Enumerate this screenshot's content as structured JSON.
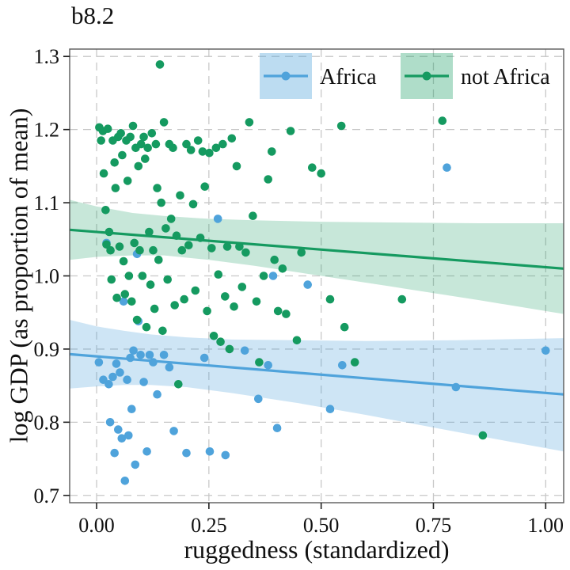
{
  "chart_data": {
    "type": "scatter",
    "title": "b8.2",
    "xlabel": "ruggedness (standardized)",
    "ylabel": "log GDP (as proportion of mean)",
    "xlim": [
      -0.06,
      1.04
    ],
    "ylim": [
      0.69,
      1.31
    ],
    "xticks": [
      0,
      0.25,
      0.5,
      0.75,
      1.0
    ],
    "xtick_labels": [
      "0.00",
      "0.25",
      "0.50",
      "0.75",
      "1.00"
    ],
    "yticks": [
      0.7,
      0.8,
      0.9,
      1.0,
      1.1,
      1.2,
      1.3
    ],
    "ytick_labels": [
      "0.7",
      "0.8",
      "0.9",
      "1.0",
      "1.1",
      "1.2",
      "1.3"
    ],
    "grid": {
      "visible": true,
      "style": "dashed",
      "color": "#c8c8c8"
    },
    "legend": {
      "position": "top-inside"
    },
    "series": [
      {
        "name": "Africa",
        "color": "#4fa3db",
        "band_color": "rgba(79,163,219,0.28)",
        "legend_patch_color": "rgba(79,163,219,0.38)",
        "regression_line": {
          "x": [
            -0.06,
            1.04
          ],
          "y": [
            0.893,
            0.838
          ]
        },
        "band": {
          "x": [
            -0.06,
            0.0,
            0.06,
            0.12,
            0.2,
            0.3,
            0.45,
            0.6,
            0.8,
            1.04
          ],
          "upper": [
            0.94,
            0.931,
            0.925,
            0.92,
            0.916,
            0.913,
            0.912,
            0.911,
            0.912,
            0.915
          ],
          "lower": [
            0.846,
            0.849,
            0.851,
            0.851,
            0.848,
            0.84,
            0.826,
            0.81,
            0.787,
            0.76
          ]
        },
        "points": [
          [
            0.005,
            0.882
          ],
          [
            0.015,
            0.858
          ],
          [
            0.022,
            1.045
          ],
          [
            0.027,
            0.852
          ],
          [
            0.03,
            0.8
          ],
          [
            0.036,
            0.862
          ],
          [
            0.04,
            0.758
          ],
          [
            0.044,
            0.88
          ],
          [
            0.048,
            0.79
          ],
          [
            0.052,
            0.868
          ],
          [
            0.056,
            0.778
          ],
          [
            0.06,
            0.965
          ],
          [
            0.063,
            0.72
          ],
          [
            0.068,
            0.858
          ],
          [
            0.071,
            0.782
          ],
          [
            0.075,
            0.888
          ],
          [
            0.078,
            0.818
          ],
          [
            0.082,
            0.898
          ],
          [
            0.086,
            0.742
          ],
          [
            0.09,
            1.03
          ],
          [
            0.093,
            0.938
          ],
          [
            0.098,
            0.892
          ],
          [
            0.105,
            0.855
          ],
          [
            0.112,
            0.76
          ],
          [
            0.118,
            0.892
          ],
          [
            0.126,
            0.882
          ],
          [
            0.135,
            0.838
          ],
          [
            0.15,
            0.892
          ],
          [
            0.162,
            0.875
          ],
          [
            0.172,
            0.788
          ],
          [
            0.2,
            0.758
          ],
          [
            0.24,
            0.888
          ],
          [
            0.252,
            0.76
          ],
          [
            0.27,
            1.078
          ],
          [
            0.287,
            0.755
          ],
          [
            0.33,
            0.898
          ],
          [
            0.36,
            0.832
          ],
          [
            0.382,
            0.878
          ],
          [
            0.393,
            1.0
          ],
          [
            0.402,
            0.792
          ],
          [
            0.47,
            0.988
          ],
          [
            0.52,
            0.818
          ],
          [
            0.547,
            0.878
          ],
          [
            0.78,
            1.148
          ],
          [
            0.8,
            0.848
          ],
          [
            1.0,
            0.898
          ]
        ]
      },
      {
        "name": "not Africa",
        "color": "#159a60",
        "band_color": "rgba(21,154,96,0.24)",
        "legend_patch_color": "rgba(21,154,96,0.34)",
        "regression_line": {
          "x": [
            -0.06,
            1.04
          ],
          "y": [
            1.063,
            1.01
          ]
        },
        "band": {
          "x": [
            -0.06,
            0.0,
            0.08,
            0.15,
            0.25,
            0.35,
            0.5,
            0.65,
            0.85,
            1.04
          ],
          "upper": [
            1.104,
            1.095,
            1.086,
            1.082,
            1.078,
            1.076,
            1.074,
            1.073,
            1.072,
            1.072
          ],
          "lower": [
            1.022,
            1.026,
            1.028,
            1.028,
            1.022,
            1.014,
            1.0,
            0.986,
            0.967,
            0.948
          ]
        },
        "points": [
          [
            0.006,
            1.203
          ],
          [
            0.01,
            1.185
          ],
          [
            0.014,
            1.198
          ],
          [
            0.016,
            1.14
          ],
          [
            0.02,
            1.09
          ],
          [
            0.022,
            1.043
          ],
          [
            0.025,
            1.201
          ],
          [
            0.028,
            1.06
          ],
          [
            0.031,
            1.035
          ],
          [
            0.033,
            0.995
          ],
          [
            0.036,
            1.185
          ],
          [
            0.04,
            1.155
          ],
          [
            0.042,
            1.12
          ],
          [
            0.045,
            0.97
          ],
          [
            0.048,
            1.19
          ],
          [
            0.051,
            1.04
          ],
          [
            0.054,
            1.195
          ],
          [
            0.057,
            1.165
          ],
          [
            0.06,
            1.02
          ],
          [
            0.063,
            0.975
          ],
          [
            0.066,
            1.185
          ],
          [
            0.069,
            1.13
          ],
          [
            0.072,
            1.0
          ],
          [
            0.075,
            1.19
          ],
          [
            0.078,
            0.965
          ],
          [
            0.081,
            1.205
          ],
          [
            0.084,
            1.045
          ],
          [
            0.087,
            1.175
          ],
          [
            0.09,
            0.94
          ],
          [
            0.093,
            1.15
          ],
          [
            0.096,
            1.035
          ],
          [
            0.099,
            1.18
          ],
          [
            0.102,
            1.0
          ],
          [
            0.105,
            1.19
          ],
          [
            0.108,
            1.16
          ],
          [
            0.111,
            0.93
          ],
          [
            0.114,
            1.175
          ],
          [
            0.117,
            1.06
          ],
          [
            0.12,
            0.988
          ],
          [
            0.123,
            1.195
          ],
          [
            0.126,
            1.035
          ],
          [
            0.129,
            0.955
          ],
          [
            0.132,
            1.18
          ],
          [
            0.135,
            1.12
          ],
          [
            0.138,
            1.022
          ],
          [
            0.141,
            1.289
          ],
          [
            0.144,
            1.1
          ],
          [
            0.147,
            0.925
          ],
          [
            0.15,
            1.21
          ],
          [
            0.154,
            1.065
          ],
          [
            0.158,
            0.995
          ],
          [
            0.162,
            1.18
          ],
          [
            0.166,
            1.078
          ],
          [
            0.17,
            1.175
          ],
          [
            0.174,
            0.96
          ],
          [
            0.178,
            1.055
          ],
          [
            0.182,
            0.852
          ],
          [
            0.186,
            1.11
          ],
          [
            0.19,
            1.035
          ],
          [
            0.195,
            0.968
          ],
          [
            0.2,
            1.18
          ],
          [
            0.205,
            1.042
          ],
          [
            0.21,
            1.172
          ],
          [
            0.215,
            1.098
          ],
          [
            0.22,
            0.98
          ],
          [
            0.226,
            1.185
          ],
          [
            0.231,
            1.052
          ],
          [
            0.236,
            1.17
          ],
          [
            0.241,
            1.122
          ],
          [
            0.246,
            0.952
          ],
          [
            0.251,
            1.168
          ],
          [
            0.256,
            1.038
          ],
          [
            0.261,
            0.918
          ],
          [
            0.266,
            1.175
          ],
          [
            0.271,
            1.002
          ],
          [
            0.276,
            0.91
          ],
          [
            0.281,
            1.18
          ],
          [
            0.286,
            0.972
          ],
          [
            0.291,
            1.04
          ],
          [
            0.296,
            0.9
          ],
          [
            0.301,
            1.188
          ],
          [
            0.306,
            0.958
          ],
          [
            0.312,
            1.15
          ],
          [
            0.318,
            1.04
          ],
          [
            0.324,
            0.985
          ],
          [
            0.332,
            1.032
          ],
          [
            0.34,
            1.21
          ],
          [
            0.348,
            1.082
          ],
          [
            0.356,
            0.965
          ],
          [
            0.362,
            0.882
          ],
          [
            0.372,
            1.0
          ],
          [
            0.382,
            1.132
          ],
          [
            0.39,
            1.17
          ],
          [
            0.396,
            1.022
          ],
          [
            0.404,
            0.952
          ],
          [
            0.414,
            1.01
          ],
          [
            0.422,
            0.948
          ],
          [
            0.432,
            1.198
          ],
          [
            0.446,
            0.912
          ],
          [
            0.456,
            1.032
          ],
          [
            0.48,
            1.148
          ],
          [
            0.5,
            1.14
          ],
          [
            0.52,
            0.968
          ],
          [
            0.545,
            1.205
          ],
          [
            0.552,
            0.93
          ],
          [
            0.575,
            0.882
          ],
          [
            0.68,
            0.968
          ],
          [
            0.77,
            1.212
          ],
          [
            0.86,
            0.782
          ]
        ]
      }
    ]
  }
}
